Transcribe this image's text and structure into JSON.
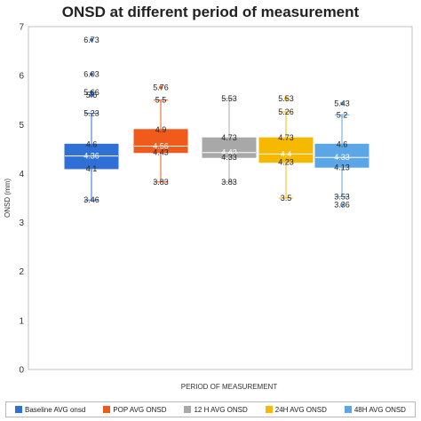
{
  "title": "ONSD at different period of measurement",
  "chart_data": {
    "type": "box",
    "title": "ONSD at different period of measurement",
    "xlabel": "PERIOD OF MEASUREMENT",
    "ylabel": "ONSD (mm)",
    "ylim": [
      0,
      7
    ],
    "yticks": [
      "0",
      "1",
      "2",
      "3",
      "4",
      "5",
      "6",
      "7"
    ],
    "grid": false,
    "legend_position": "bottom",
    "series": [
      {
        "name": "Baseline AVG onsd",
        "color": "#2f6fd6",
        "whisker_low": 3.46,
        "q1": 4.1,
        "median": 4.36,
        "q3": 4.6,
        "whisker_high": 5.23,
        "outliers": [
          5.6,
          5.66,
          6.03,
          6.73
        ],
        "labels": [
          "6.73",
          "6.03",
          "5.66",
          "5.6",
          "5.23",
          "4.6",
          "4.36",
          "4.1",
          "3.46"
        ]
      },
      {
        "name": "POP AVG ONSD",
        "color": "#f05a1a",
        "whisker_low": 3.83,
        "q1": 4.43,
        "median": 4.56,
        "q3": 4.9,
        "whisker_high": 5.5,
        "outliers": [
          5.76
        ],
        "labels": [
          "5.76",
          "5.5",
          "4.9",
          "4.56",
          "4.43",
          "3.83"
        ]
      },
      {
        "name": "12 H AVG ONSD",
        "color": "#a8a8a8",
        "whisker_low": 3.83,
        "q1": 4.33,
        "median": 4.43,
        "q3": 4.73,
        "whisker_high": 5.53,
        "outliers": [],
        "labels": [
          "5.53",
          "4.73",
          "4.43",
          "4.33",
          "3.83"
        ]
      },
      {
        "name": "24H AVG ONSD",
        "color": "#f7b800",
        "whisker_low": 3.5,
        "q1": 4.23,
        "median": 4.4,
        "q3": 4.73,
        "whisker_high": 5.26,
        "outliers": [
          5.53
        ],
        "labels": [
          "5.53",
          "5.26",
          "4.73",
          "4.4",
          "4.23",
          "3.5"
        ]
      },
      {
        "name": "48H AVG ONSD",
        "color": "#5aa6e6",
        "whisker_low": 3.53,
        "q1": 4.13,
        "median": 4.33,
        "q3": 4.6,
        "whisker_high": 5.2,
        "outliers": [
          5.43,
          3.36
        ],
        "labels": [
          "5.43",
          "5.2",
          "4.6",
          "4.33",
          "4.13",
          "3.53",
          "3.36"
        ]
      }
    ]
  }
}
